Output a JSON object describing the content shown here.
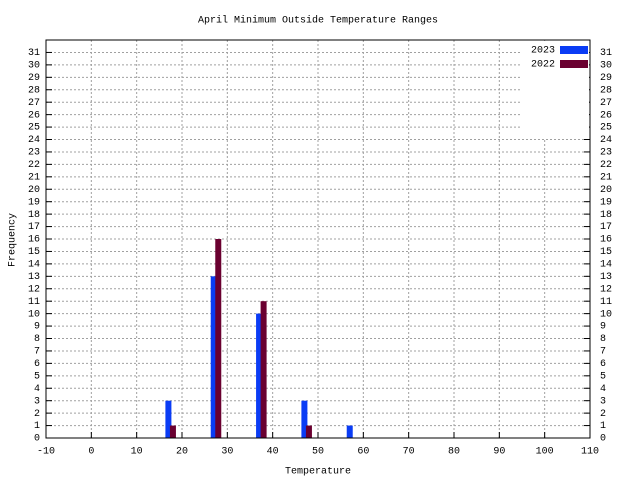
{
  "chart_data": {
    "type": "bar",
    "title": "April Minimum Outside Temperature Ranges",
    "x_label": "Temperature",
    "y_label": "Frequency",
    "series": [
      {
        "name": "2023",
        "color": "#0a3cf5",
        "x": [
          17,
          27,
          37,
          47,
          57
        ],
        "values": [
          3,
          13,
          10,
          3,
          1
        ]
      },
      {
        "name": "2022",
        "color": "#6a0030",
        "x": [
          18,
          28,
          38,
          48
        ],
        "values": [
          1,
          16,
          11,
          1
        ]
      }
    ],
    "xlim": [
      -10,
      110
    ],
    "xticks": [
      -10,
      0,
      10,
      20,
      30,
      40,
      50,
      60,
      70,
      80,
      90,
      100,
      110
    ],
    "ylim": [
      0,
      32
    ],
    "yticks": [
      0,
      1,
      2,
      3,
      4,
      5,
      6,
      7,
      8,
      9,
      10,
      11,
      12,
      13,
      14,
      15,
      16,
      17,
      18,
      19,
      20,
      21,
      22,
      23,
      24,
      25,
      26,
      27,
      28,
      29,
      30,
      31
    ],
    "grid": true,
    "legend": "top-right"
  }
}
